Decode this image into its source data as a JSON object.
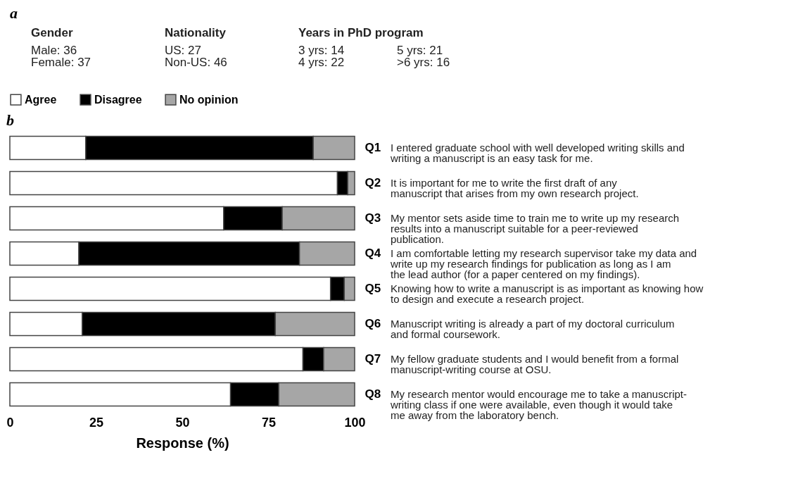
{
  "chart_data": [
    {
      "type": "other",
      "title": "a",
      "annotations": [
        "Gender",
        "Male: 36",
        "Female: 37",
        "Nationality",
        "US: 27",
        "Non-US: 46",
        "Years in PhD program",
        "3 yrs: 14",
        "4 yrs: 22",
        "5 yrs: 21",
        ">6 yrs: 16"
      ]
    },
    {
      "type": "bar",
      "title": "b",
      "orientation": "horizontal",
      "stacked": true,
      "legend": "top",
      "grid": false,
      "xlabel": "Response (%)",
      "xlim": [
        0,
        100
      ],
      "xticks": [
        0,
        25,
        50,
        75,
        100
      ],
      "categories": [
        "Q1",
        "Q2",
        "Q3",
        "Q4",
        "Q5",
        "Q6",
        "Q7",
        "Q8"
      ],
      "series": [
        {
          "name": "Agree",
          "color": "#ffffff",
          "values": [
            22,
            95,
            62,
            20,
            93,
            21,
            85,
            64
          ]
        },
        {
          "name": "Disagree",
          "color": "#000000",
          "values": [
            66,
            3,
            17,
            64,
            4,
            56,
            6,
            14
          ]
        },
        {
          "name": "No opinion",
          "color": "#a6a6a6",
          "values": [
            12,
            2,
            21,
            16,
            3,
            23,
            9,
            22
          ]
        }
      ],
      "annotations": [
        "I entered graduate school with well developed writing skills and writing a manuscript is an easy task for me.",
        "It is important for me to write the first draft of any manuscript that arises from my own research project.",
        "My mentor sets aside time to train me to write up my research results into a manuscript suitable for a peer-reviewed publication.",
        "I am comfortable letting my research supervisor take my data and write up my research findings for publication as long as I am the lead author (for a paper centered on my findings).",
        "Knowing how to write a manuscript is as important as knowing how to design and execute a research project.",
        "Manuscript writing is already a part of my doctoral curriculum and formal coursework.",
        "My fellow graduate students and I would benefit from a formal manuscript-writing course at OSU.",
        "My research mentor would encourage me to take a manuscript-writing class if one were available, even though it would take me away from the laboratory bench."
      ]
    }
  ]
}
